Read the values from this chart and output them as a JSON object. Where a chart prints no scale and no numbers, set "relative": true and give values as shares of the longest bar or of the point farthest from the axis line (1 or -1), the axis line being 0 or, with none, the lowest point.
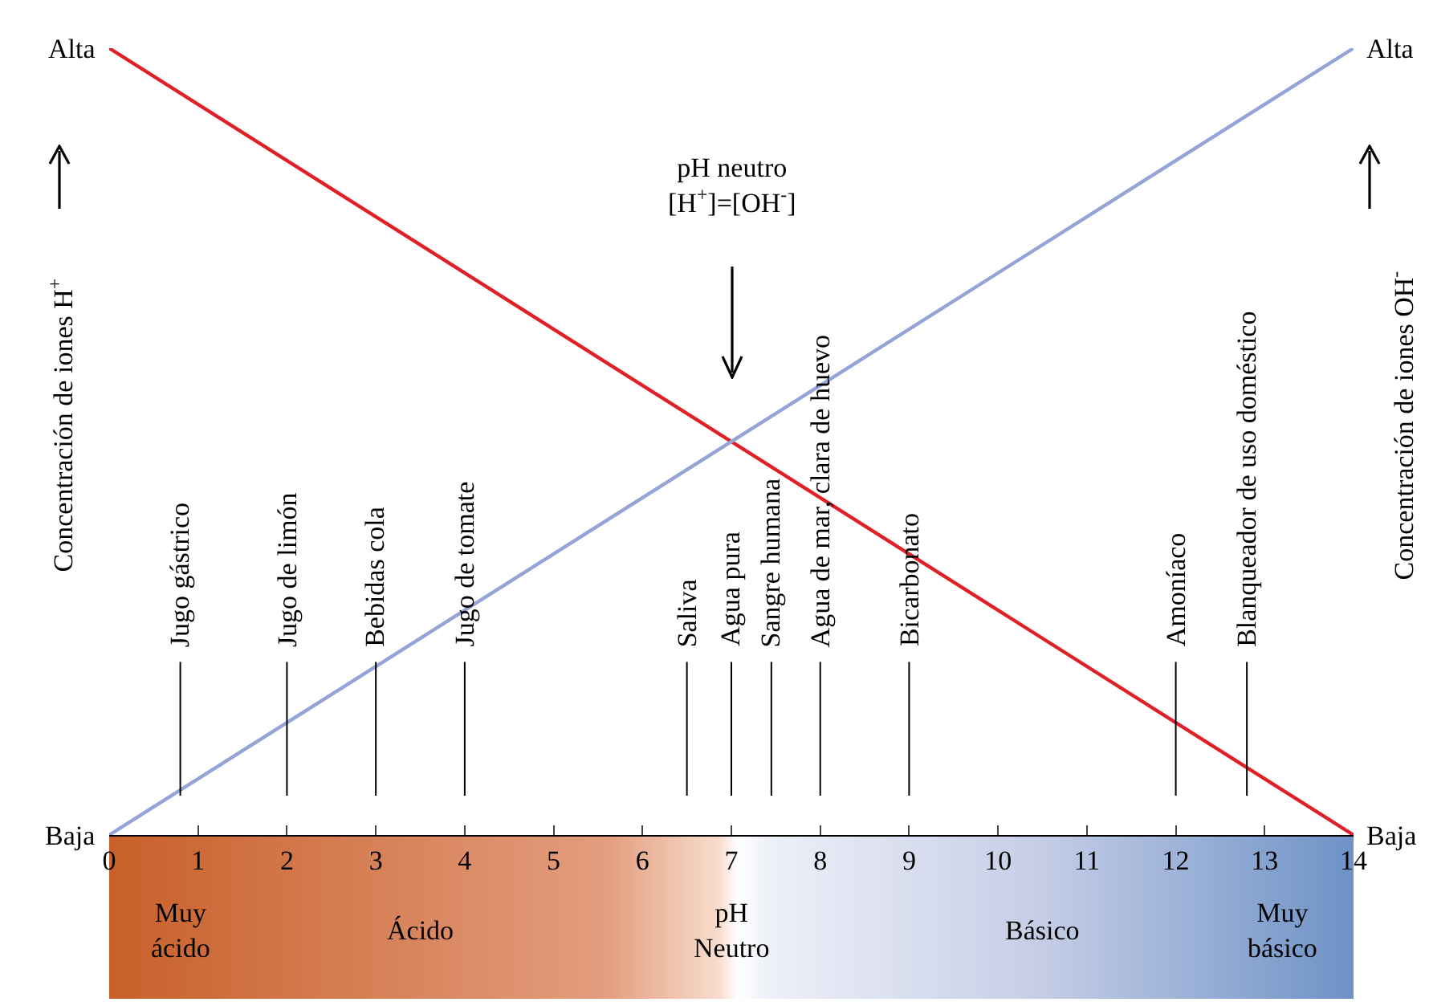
{
  "chart_data": {
    "type": "line",
    "relative": true,
    "ylabel": "Concentración de iones H$^{+}$",
    "y2label": "Concentración de iones OH$^{-}$",
    "x": [
      0,
      14
    ],
    "xlim": [
      0,
      14
    ],
    "xticks": [
      0,
      1,
      2,
      3,
      4,
      5,
      6,
      7,
      8,
      9,
      10,
      11,
      12,
      13,
      14
    ],
    "series": [
      {
        "color": "#e02027",
        "values": [
          1,
          0
        ]
      },
      {
        "color": "#95a3d6",
        "values": [
          0,
          1
        ]
      }
    ],
    "ref_lines": [
      {
        "axis": "x",
        "value": 0.8,
        "label": "Jugo gástrico"
      },
      {
        "axis": "x",
        "value": 2,
        "label": "Jugo de limón"
      },
      {
        "axis": "x",
        "value": 3,
        "label": "Bebidas cola"
      },
      {
        "axis": "x",
        "value": 4,
        "label": "Jugo de tomate"
      },
      {
        "axis": "x",
        "value": 6.5,
        "label": "Saliva"
      },
      {
        "axis": "x",
        "value": 7,
        "label": "Agua pura"
      },
      {
        "axis": "x",
        "value": 7.45,
        "label": "Sangre humana"
      },
      {
        "axis": "x",
        "value": 8,
        "label": "Agua de mar, clara de huevo"
      },
      {
        "axis": "x",
        "value": 9,
        "label": "Bicarbonato"
      },
      {
        "axis": "x",
        "value": 12,
        "label": "Amoníaco"
      },
      {
        "axis": "x",
        "value": 12.8,
        "label": "Blanqueador de uso doméstico"
      }
    ],
    "annotations": [
      "pH neutro\n[H$^{+}$]=[OH$^{-}$]",
      "Alta",
      "Baja",
      "Alta",
      "Baja",
      "Muy\nácido",
      "Ácido",
      "pH\nNeutro",
      "Básico",
      "Muy\nbásico"
    ],
    "line_style": "solid",
    "marker": "none",
    "grid": false
  }
}
